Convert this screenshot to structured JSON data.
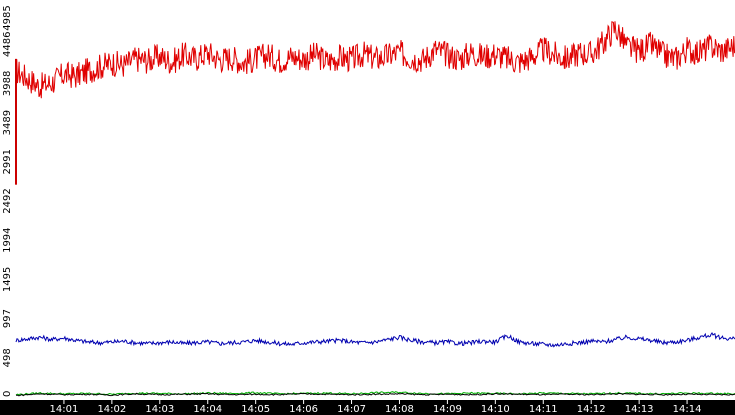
{
  "chart_data": {
    "type": "line",
    "title": "",
    "xlabel": "",
    "ylabel": "",
    "x_ticks": [
      "14:01",
      "14:02",
      "14:03",
      "14:04",
      "14:05",
      "14:06",
      "14:07",
      "14:08",
      "14:09",
      "14:10",
      "14:11",
      "14:12",
      "14:13",
      "14:14"
    ],
    "y_ticks": [
      "0",
      "498",
      "997",
      "1495",
      "1994",
      "2492",
      "2991",
      "3489",
      "3988",
      "4486",
      "4985"
    ],
    "ylim": [
      0,
      4985
    ],
    "xlim_minutes": [
      0.0,
      15.0
    ],
    "grid": false,
    "legend": "none",
    "colors": {
      "red_series": "#e00000",
      "blue_series": "#0000b0",
      "green_series": "#00b000",
      "black_series": "#000000",
      "axis_bar": "#000000",
      "left_marker": "#cc0000"
    },
    "series": [
      {
        "color": "#e00000",
        "x_minutes": [
          0.0,
          0.25,
          0.5,
          0.75,
          1.0,
          1.25,
          1.5,
          1.75,
          2.0,
          2.25,
          2.5,
          2.75,
          3.0,
          3.25,
          3.5,
          3.75,
          4.0,
          4.25,
          4.5,
          4.75,
          5.0,
          5.25,
          5.5,
          5.75,
          6.0,
          6.25,
          6.5,
          6.75,
          7.0,
          7.25,
          7.5,
          7.75,
          8.0,
          8.25,
          8.5,
          8.75,
          9.0,
          9.25,
          9.5,
          9.75,
          10.0,
          10.25,
          10.5,
          10.75,
          11.0,
          11.25,
          11.5,
          11.75,
          12.0,
          12.25,
          12.5,
          12.75,
          13.0,
          13.25,
          13.5,
          13.75,
          14.0,
          14.25,
          14.5,
          14.75,
          15.0
        ],
        "values": [
          4150,
          4050,
          3950,
          4000,
          4100,
          4080,
          4150,
          4200,
          4250,
          4220,
          4300,
          4280,
          4330,
          4260,
          4350,
          4300,
          4380,
          4290,
          4320,
          4250,
          4300,
          4350,
          4280,
          4330,
          4300,
          4350,
          4270,
          4320,
          4290,
          4360,
          4300,
          4340,
          4380,
          4310,
          4290,
          4420,
          4350,
          4300,
          4380,
          4330,
          4360,
          4300,
          4260,
          4320,
          4420,
          4350,
          4300,
          4380,
          4360,
          4500,
          4700,
          4450,
          4400,
          4480,
          4350,
          4300,
          4420,
          4380,
          4460,
          4400,
          4480
        ]
      },
      {
        "color": "#0000b0",
        "x_minutes": [
          0.0,
          0.25,
          0.5,
          0.75,
          1.0,
          1.25,
          1.5,
          1.75,
          2.0,
          2.25,
          2.5,
          2.75,
          3.0,
          3.25,
          3.5,
          3.75,
          4.0,
          4.25,
          4.5,
          4.75,
          5.0,
          5.25,
          5.5,
          5.75,
          6.0,
          6.25,
          6.5,
          6.75,
          7.0,
          7.25,
          7.5,
          7.75,
          8.0,
          8.25,
          8.5,
          8.75,
          9.0,
          9.25,
          9.5,
          9.75,
          10.0,
          10.25,
          10.5,
          10.75,
          11.0,
          11.25,
          11.5,
          11.75,
          12.0,
          12.25,
          12.5,
          12.75,
          13.0,
          13.25,
          13.5,
          13.75,
          14.0,
          14.25,
          14.5,
          14.75,
          15.0
        ],
        "values": [
          720,
          740,
          760,
          730,
          750,
          720,
          700,
          690,
          700,
          710,
          690,
          680,
          690,
          700,
          680,
          690,
          700,
          680,
          690,
          700,
          720,
          700,
          680,
          670,
          690,
          700,
          710,
          720,
          700,
          690,
          700,
          730,
          760,
          720,
          700,
          690,
          700,
          680,
          690,
          710,
          700,
          780,
          700,
          680,
          670,
          660,
          680,
          690,
          710,
          700,
          730,
          760,
          740,
          720,
          690,
          700,
          720,
          760,
          790,
          750,
          740
        ]
      },
      {
        "color": "#00b000",
        "x_minutes": [
          0.0,
          0.5,
          1.0,
          1.5,
          2.0,
          2.5,
          3.0,
          3.5,
          4.0,
          4.5,
          5.0,
          5.5,
          6.0,
          6.5,
          7.0,
          7.5,
          8.0,
          8.5,
          9.0,
          9.5,
          10.0,
          10.5,
          11.0,
          11.5,
          12.0,
          12.5,
          13.0,
          13.5,
          14.0,
          14.5,
          15.0
        ],
        "values": [
          30,
          50,
          40,
          45,
          35,
          50,
          45,
          40,
          50,
          45,
          55,
          40,
          45,
          50,
          40,
          55,
          60,
          45,
          40,
          50,
          45,
          40,
          50,
          45,
          40,
          50,
          45,
          40,
          50,
          45,
          40
        ]
      },
      {
        "color": "#000000",
        "x_minutes": [
          0.0,
          0.5,
          1.0,
          1.5,
          2.0,
          2.5,
          3.0,
          3.5,
          4.0,
          4.5,
          5.0,
          5.5,
          6.0,
          6.5,
          7.0,
          7.5,
          8.0,
          8.5,
          9.0,
          9.5,
          10.0,
          10.5,
          11.0,
          11.5,
          12.0,
          12.5,
          13.0,
          13.5,
          14.0,
          14.5,
          15.0
        ],
        "values": [
          20,
          40,
          30,
          35,
          25,
          40,
          30,
          35,
          40,
          30,
          35,
          30,
          40,
          35,
          30,
          35,
          40,
          30,
          35,
          30,
          40,
          35,
          30,
          35,
          30,
          40,
          35,
          30,
          35,
          30,
          30
        ]
      }
    ]
  }
}
